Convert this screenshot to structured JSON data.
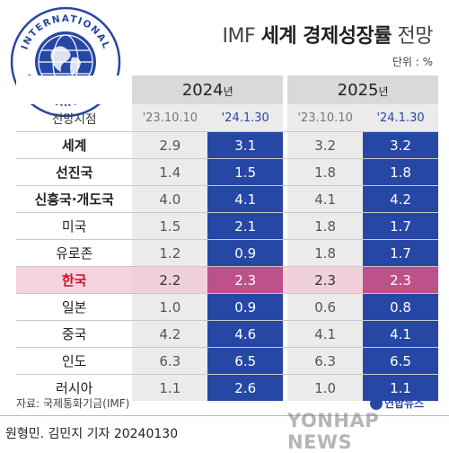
{
  "header": {
    "title_prefix": "IMF",
    "title_bold": "세계 경제성장률",
    "title_suffix": "전망",
    "unit": "단위 : %"
  },
  "logo": {
    "text": "INTERNATIONAL MONETARY FUND",
    "color": "#2747a5"
  },
  "chart_data": {
    "type": "table",
    "title": "IMF 세계 경제성장률 전망",
    "unit": "%",
    "row_header_label": "전망시점",
    "year_groups": [
      {
        "year": "2024",
        "suffix": "년",
        "columns": [
          "'23.10.10",
          "'24.1.30"
        ]
      },
      {
        "year": "2025",
        "suffix": "년",
        "columns": [
          "'23.10.10",
          "'24.1.30"
        ]
      }
    ],
    "rows": [
      {
        "label": "세계",
        "values": [
          "2.9",
          "3.1",
          "3.2",
          "3.2"
        ],
        "bold": true
      },
      {
        "label": "선진국",
        "values": [
          "1.4",
          "1.5",
          "1.8",
          "1.8"
        ],
        "bold": true
      },
      {
        "label": "신흥국·개도국",
        "values": [
          "4.0",
          "4.1",
          "4.1",
          "4.2"
        ],
        "bold": true
      },
      {
        "label": "미국",
        "values": [
          "1.5",
          "2.1",
          "1.8",
          "1.7"
        ],
        "bold": false
      },
      {
        "label": "유로존",
        "values": [
          "1.2",
          "0.9",
          "1.8",
          "1.7"
        ],
        "bold": false
      },
      {
        "label": "한국",
        "values": [
          "2.2",
          "2.3",
          "2.3",
          "2.3"
        ],
        "bold": true,
        "highlight": true
      },
      {
        "label": "일본",
        "values": [
          "1.0",
          "0.9",
          "0.6",
          "0.8"
        ],
        "bold": false
      },
      {
        "label": "중국",
        "values": [
          "4.2",
          "4.6",
          "4.1",
          "4.1"
        ],
        "bold": false
      },
      {
        "label": "인도",
        "values": [
          "6.3",
          "6.5",
          "6.3",
          "6.5"
        ],
        "bold": false
      },
      {
        "label": "러시아",
        "values": [
          "1.1",
          "2.6",
          "1.0",
          "1.1"
        ],
        "bold": false
      }
    ],
    "colors": {
      "new_forecast": "#2747a5",
      "old_forecast": "#ebebeb",
      "highlight_row": "#f3d4dc",
      "highlight_new": "#bd5189"
    }
  },
  "footer": {
    "source": "자료: 국제통화기금(IMF)",
    "byline": "원형민. 김민지 기자  20240130",
    "agency_logo": "연합뉴스",
    "watermark": "YONHAP NEWS"
  }
}
